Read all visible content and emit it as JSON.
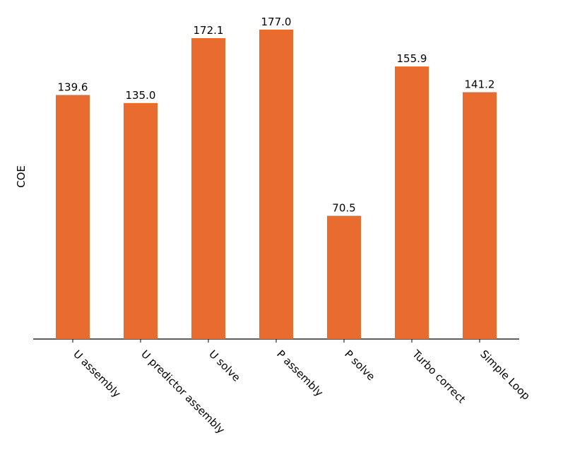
{
  "chart_data": {
    "type": "bar",
    "ylabel": "COE",
    "categories": [
      "U assembly",
      "U predictor assembly",
      "U solve",
      "P assembly",
      "P solve",
      "Turbo correct",
      "Simple Loop"
    ],
    "values": [
      139.6,
      135.0,
      172.1,
      177.0,
      70.5,
      155.9,
      141.2
    ],
    "value_labels": [
      "139.6",
      "135.0",
      "172.1",
      "177.0",
      "70.5",
      "155.9",
      "141.2"
    ],
    "color": "#e86b2f",
    "ylim": [
      0,
      185.85
    ]
  }
}
